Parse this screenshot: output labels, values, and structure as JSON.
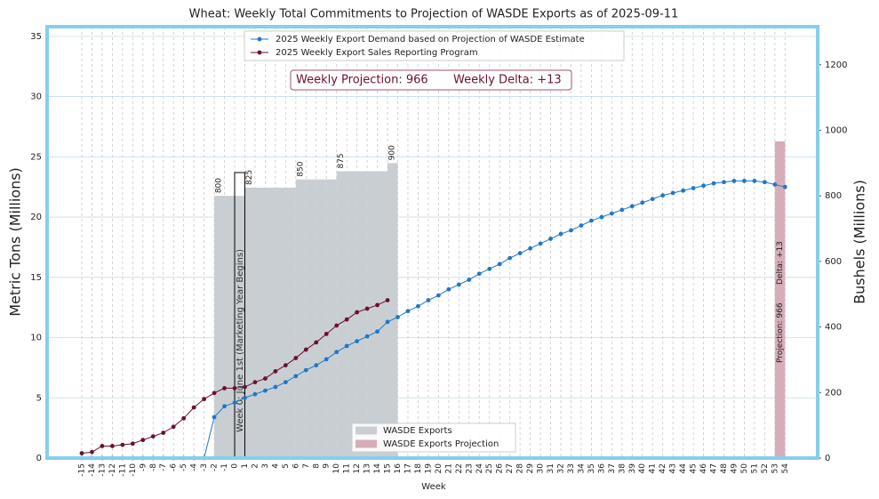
{
  "chart_data": {
    "type": "line",
    "title": "Wheat: Weekly Total Commitments to Projection of WASDE Exports as of 2025-09-11",
    "xlabel": "Week",
    "ylabel": "Metric Tons (Millions)",
    "y2label": "Bushels (Millions)",
    "x": [
      -15,
      -14,
      -13,
      -12,
      -11,
      -10,
      -9,
      -8,
      -7,
      -6,
      -5,
      -4,
      -3,
      -2,
      -1,
      0,
      1,
      2,
      3,
      4,
      5,
      6,
      7,
      8,
      9,
      10,
      11,
      12,
      13,
      14,
      15,
      16,
      17,
      18,
      19,
      20,
      21,
      22,
      23,
      24,
      25,
      26,
      27,
      28,
      29,
      30,
      31,
      32,
      33,
      34,
      35,
      36,
      37,
      38,
      39,
      40,
      41,
      42,
      43,
      44,
      45,
      46,
      47,
      48,
      49,
      50,
      51,
      52,
      53,
      54
    ],
    "xticks": [
      -15,
      -14,
      -13,
      -12,
      -11,
      -10,
      -9,
      -8,
      -7,
      -6,
      -5,
      -4,
      -3,
      -2,
      -1,
      0,
      1,
      2,
      3,
      4,
      5,
      6,
      7,
      8,
      9,
      10,
      11,
      12,
      13,
      14,
      15,
      16,
      17,
      18,
      19,
      20,
      21,
      22,
      23,
      24,
      25,
      26,
      27,
      28,
      29,
      30,
      31,
      32,
      33,
      34,
      35,
      36,
      37,
      38,
      39,
      40,
      41,
      42,
      43,
      44,
      45,
      46,
      47,
      48,
      49,
      50,
      51,
      52,
      53,
      54
    ],
    "xlim": [
      -18.4,
      57.2
    ],
    "ylim": [
      0,
      35.8
    ],
    "yticks": [
      0,
      5,
      10,
      15,
      20,
      25,
      30,
      35
    ],
    "y2lim": [
      0,
      1316
    ],
    "y2ticks": [
      0,
      200,
      400,
      600,
      800,
      1000,
      1200
    ],
    "grid": true,
    "series": [
      {
        "name": "2025 Weekly Export Demand based on Projection of WASDE Estimate",
        "color": "#1f77c8",
        "values": [
          0,
          0,
          0,
          0,
          0,
          0,
          0,
          0,
          0,
          0,
          0,
          0,
          0,
          3.4,
          4.3,
          4.6,
          5.0,
          5.3,
          5.6,
          5.9,
          6.3,
          6.8,
          7.3,
          7.7,
          8.2,
          8.8,
          9.3,
          9.7,
          10.1,
          10.5,
          11.3,
          11.7,
          12.2,
          12.6,
          13.1,
          13.5,
          14.0,
          14.4,
          14.8,
          15.3,
          15.7,
          16.1,
          16.6,
          17.0,
          17.4,
          17.8,
          18.2,
          18.6,
          18.9,
          19.3,
          19.7,
          20.0,
          20.3,
          20.6,
          20.9,
          21.2,
          21.5,
          21.8,
          22.0,
          22.2,
          22.4,
          22.6,
          22.8,
          22.9,
          23.0,
          23.0,
          23.0,
          22.9,
          22.7,
          22.5
        ]
      },
      {
        "name": "2025 Weekly Export Sales Reporting Program",
        "color": "#6b1030",
        "values": [
          0.4,
          0.5,
          1.0,
          1.0,
          1.1,
          1.2,
          1.5,
          1.8,
          2.1,
          2.6,
          3.3,
          4.2,
          4.9,
          5.4,
          5.8,
          5.8,
          5.9,
          6.3,
          6.6,
          7.2,
          7.7,
          8.3,
          9.0,
          9.6,
          10.3,
          11.0,
          11.5,
          12.1,
          12.4,
          12.7,
          13.1,
          null,
          null,
          null,
          null,
          null,
          null,
          null,
          null,
          null,
          null,
          null,
          null,
          null,
          null,
          null,
          null,
          null,
          null,
          null,
          null,
          null,
          null,
          null,
          null,
          null,
          null,
          null,
          null,
          null,
          null,
          null,
          null,
          null,
          null,
          null,
          null,
          null,
          null,
          null
        ]
      }
    ],
    "bars": [
      {
        "name": "WASDE Exports",
        "color": "#c9ced3",
        "axis": "y2",
        "x": [
          -2,
          -1,
          0,
          1,
          2,
          3,
          4,
          5,
          6,
          7,
          8,
          9,
          10,
          11,
          12,
          13,
          14,
          15
        ],
        "values": [
          800,
          800,
          800,
          825,
          825,
          825,
          825,
          825,
          850,
          850,
          850,
          850,
          875,
          875,
          875,
          875,
          875,
          900
        ]
      },
      {
        "name": "WASDE Exports Projection",
        "color": "#d6adb8",
        "axis": "y2",
        "x": [
          53
        ],
        "values": [
          966
        ]
      }
    ],
    "annotations": {
      "weekly_projection": "Weekly Projection: 966",
      "weekly_delta": "Weekly Delta: +13",
      "marketing_year": "Week 0: June 1st (Marketing Year Begins)",
      "projection_label": "Projection: 966",
      "delta_label": "Delta: +13"
    }
  }
}
